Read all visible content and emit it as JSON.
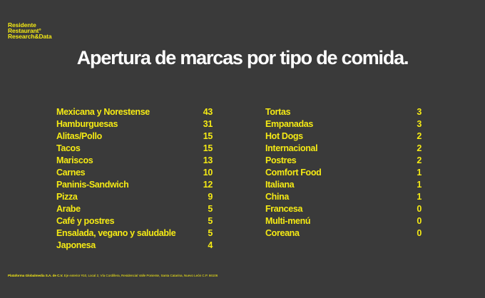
{
  "logo": {
    "line1": "Residente",
    "line2": "Restaurant°",
    "line3": "Research&Data"
  },
  "title": "Apertura de marcas por tipo de comida.",
  "chart_data": {
    "type": "table",
    "columns": [
      [
        {
          "label": "Mexicana y Norestense",
          "value": 43
        },
        {
          "label": "Hamburguesas",
          "value": 31
        },
        {
          "label": "Alitas/Pollo",
          "value": 15
        },
        {
          "label": "Tacos",
          "value": 15
        },
        {
          "label": "Mariscos",
          "value": 13
        },
        {
          "label": "Carnes",
          "value": 10
        },
        {
          "label": "Paninis-Sandwich",
          "value": 12
        },
        {
          "label": "Pizza",
          "value": 9
        },
        {
          "label": "Arabe",
          "value": 5
        },
        {
          "label": "Café y postres",
          "value": 5
        },
        {
          "label": "Ensalada, vegano y saludable",
          "value": 5
        },
        {
          "label": "Japonesa",
          "value": 4
        }
      ],
      [
        {
          "label": "Tortas",
          "value": 3
        },
        {
          "label": "Empanadas",
          "value": 3
        },
        {
          "label": "Hot Dogs",
          "value": 2
        },
        {
          "label": "Internacional",
          "value": 2
        },
        {
          "label": "Postres",
          "value": 2
        },
        {
          "label": "Comfort Food",
          "value": 1
        },
        {
          "label": "Italiana",
          "value": 1
        },
        {
          "label": "China",
          "value": 1
        },
        {
          "label": "Francesa",
          "value": 0
        },
        {
          "label": "Multi-menú",
          "value": 0
        },
        {
          "label": "Coreana",
          "value": 0
        }
      ]
    ]
  },
  "footer": {
    "company": "Plataforma Globalmedia S.A. de C.V.",
    "address": "Eje exterior #10, Local 2, Vía Cordillera, Residencial Valle Poniente, Santa Catarina, Nuevo León C.P. 66106"
  },
  "colors": {
    "background": "#3a3a3a",
    "accent": "#f5ea14",
    "title": "#ffffff"
  }
}
